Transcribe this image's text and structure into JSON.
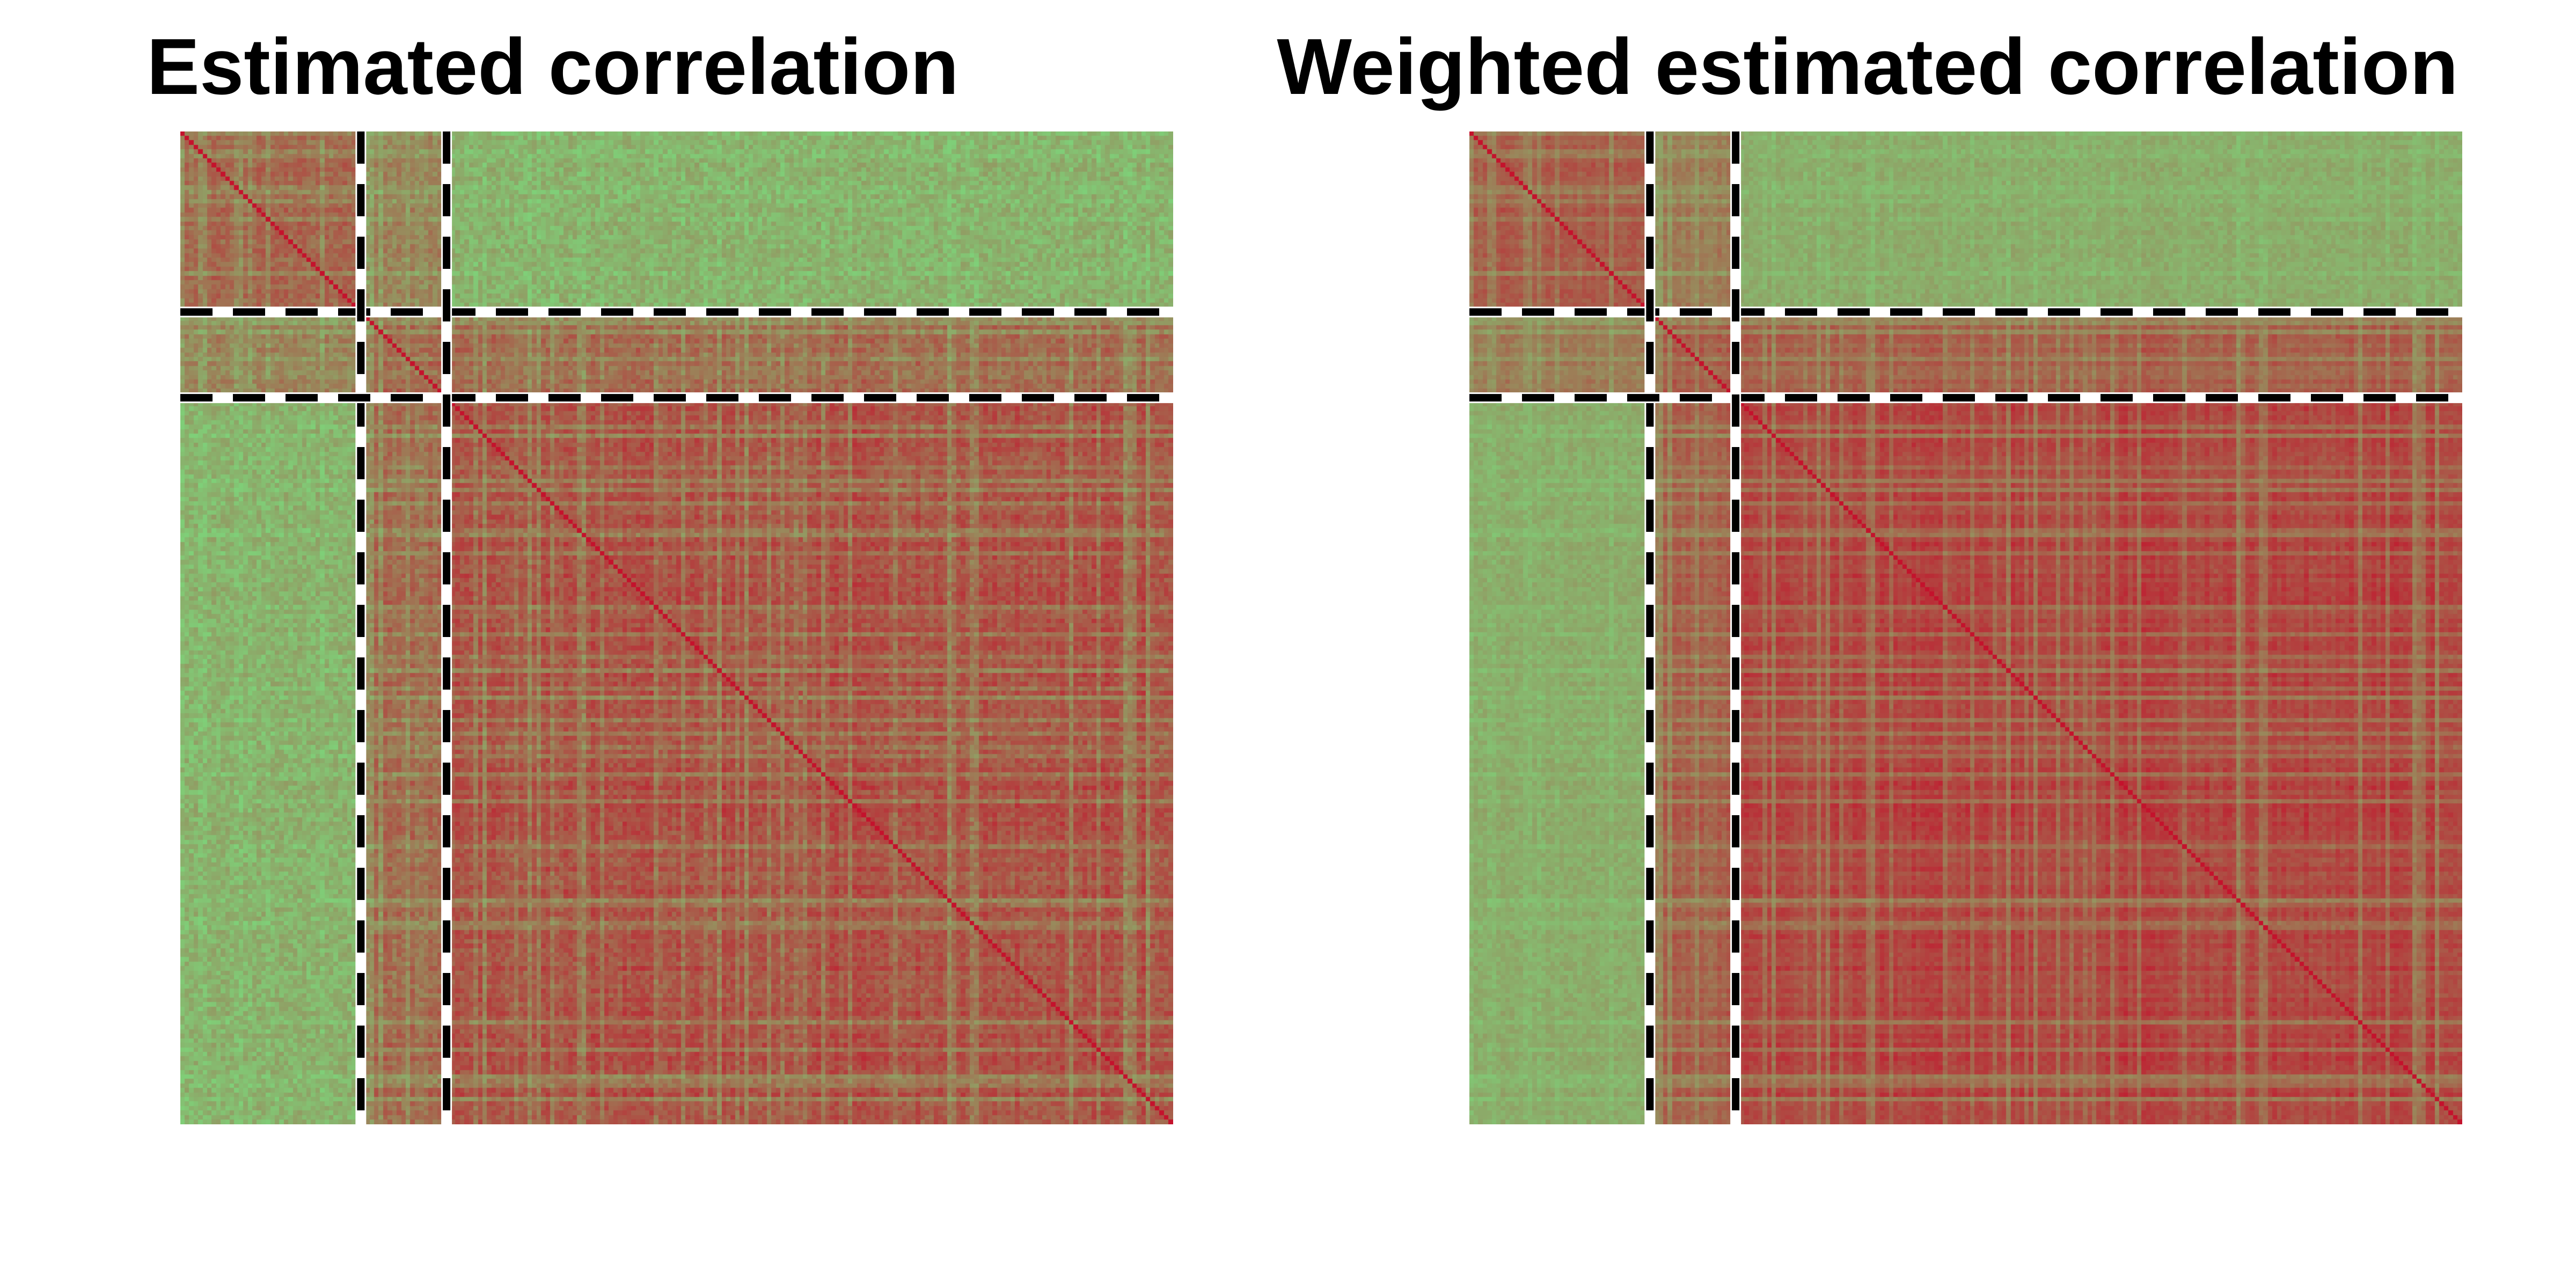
{
  "chart_data": [
    {
      "type": "heatmap",
      "title": "Estimated correlation",
      "matrix_size": 220,
      "group_boundaries": [
        40,
        59
      ],
      "value_range": [
        -1,
        1
      ],
      "colors": {
        "low": "#7fcf78",
        "high": "#c4122c",
        "diagonal": "#c4122c"
      },
      "dashed_lines": {
        "color": "#000000",
        "background": "#ffffff"
      },
      "weighted": false
    },
    {
      "type": "heatmap",
      "title": "Weighted estimated correlation",
      "matrix_size": 220,
      "group_boundaries": [
        40,
        59
      ],
      "value_range": [
        -1,
        1
      ],
      "colors": {
        "low": "#7fcf78",
        "high": "#c4122c",
        "diagonal": "#c4122c"
      },
      "dashed_lines": {
        "color": "#000000",
        "background": "#ffffff"
      },
      "weighted": true
    }
  ]
}
